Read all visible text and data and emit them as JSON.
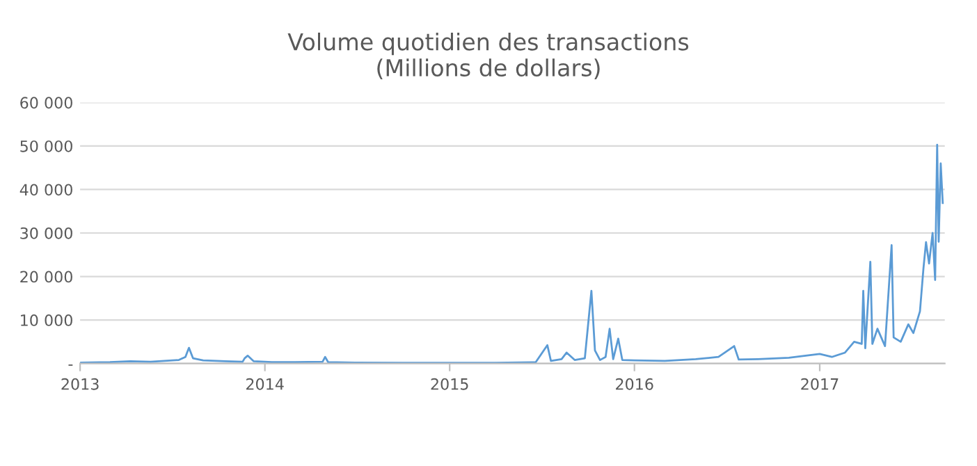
{
  "chart_data": {
    "type": "line",
    "title": "Volume quotidien des transactions\n(Millions de dollars)",
    "x": [
      "2013-01-01",
      "2013-03-01",
      "2013-04-10",
      "2013-05-20",
      "2013-07-15",
      "2013-07-28",
      "2013-08-04",
      "2013-08-12",
      "2013-09-01",
      "2013-10-15",
      "2013-11-18",
      "2013-11-22",
      "2013-11-28",
      "2013-12-10",
      "2014-01-15",
      "2014-03-01",
      "2014-04-25",
      "2014-04-30",
      "2014-05-06",
      "2014-07-01",
      "2014-10-01",
      "2015-01-01",
      "2015-04-01",
      "2015-06-20",
      "2015-07-13",
      "2015-07-20",
      "2015-08-10",
      "2015-08-20",
      "2015-09-05",
      "2015-09-25",
      "2015-10-08",
      "2015-10-15",
      "2015-10-25",
      "2015-11-05",
      "2015-11-13",
      "2015-11-20",
      "2015-11-30",
      "2015-12-08",
      "2016-01-01",
      "2016-03-01",
      "2016-05-01",
      "2016-06-15",
      "2016-07-16",
      "2016-07-25",
      "2016-09-01",
      "2016-11-01",
      "2017-01-01",
      "2017-01-25",
      "2017-02-20",
      "2017-03-10",
      "2017-03-25",
      "2017-03-28",
      "2017-04-01",
      "2017-04-11",
      "2017-04-15",
      "2017-04-25",
      "2017-05-10",
      "2017-05-23",
      "2017-05-27",
      "2017-06-10",
      "2017-06-25",
      "2017-07-05",
      "2017-07-18",
      "2017-07-25",
      "2017-07-30",
      "2017-08-05",
      "2017-08-12",
      "2017-08-17",
      "2017-08-21",
      "2017-08-24",
      "2017-08-28",
      "2017-09-01"
    ],
    "series": [
      {
        "color": "#5b9bd5",
        "values": [
          200,
          300,
          500,
          400,
          800,
          1500,
          3600,
          1200,
          700,
          500,
          400,
          1200,
          1800,
          500,
          300,
          300,
          400,
          1500,
          300,
          200,
          150,
          150,
          150,
          300,
          4200,
          600,
          1000,
          2500,
          800,
          1200,
          16700,
          3000,
          800,
          1500,
          8000,
          1000,
          5700,
          800,
          700,
          600,
          1000,
          1500,
          4000,
          900,
          1000,
          1300,
          2200,
          1500,
          2500,
          5000,
          4500,
          16700,
          3500,
          23400,
          4500,
          8000,
          4000,
          27200,
          6000,
          5000,
          9000,
          7000,
          12000,
          22000,
          27900,
          23000,
          30000,
          19200,
          50300,
          28000,
          46000,
          36900
        ]
      }
    ],
    "xlim": [
      "2013-01-01",
      "2017-09-05"
    ],
    "xticks": [
      {
        "value": "2013-01-01",
        "label": "2013"
      },
      {
        "value": "2014-01-01",
        "label": "2014"
      },
      {
        "value": "2015-01-01",
        "label": "2015"
      },
      {
        "value": "2016-01-01",
        "label": "2016"
      },
      {
        "value": "2017-01-01",
        "label": "2017"
      }
    ],
    "ylim": [
      0,
      60000
    ],
    "yticks": [
      {
        "value": 0,
        "label": "-"
      },
      {
        "value": 10000,
        "label": "10 000"
      },
      {
        "value": 20000,
        "label": "20 000"
      },
      {
        "value": 30000,
        "label": "30 000"
      },
      {
        "value": 40000,
        "label": "40 000"
      },
      {
        "value": 50000,
        "label": "50 000"
      },
      {
        "value": 60000,
        "label": "60 000"
      }
    ],
    "grid": "y",
    "legend": false,
    "marker": "none",
    "line_style": "solid"
  }
}
